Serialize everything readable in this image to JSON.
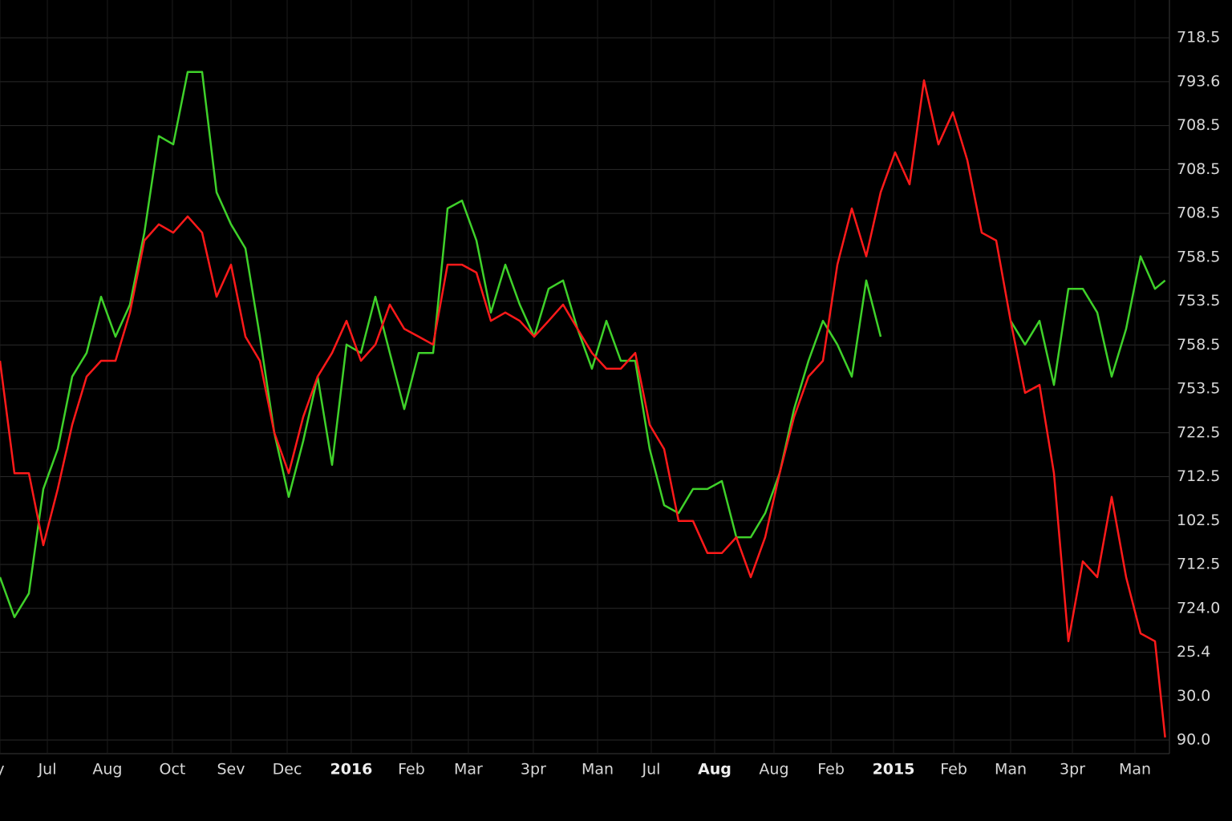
{
  "chart_data": {
    "type": "line",
    "grid": true,
    "xlim": [
      0,
      81
    ],
    "ylim": [
      -0.31,
      16.86
    ],
    "xticks": [
      {
        "value": 0,
        "label": "y"
      },
      {
        "value": 3.28,
        "label": "Jul"
      },
      {
        "value": 7.44,
        "label": "Aug"
      },
      {
        "value": 11.94,
        "label": "Oct"
      },
      {
        "value": 16,
        "label": "Sev"
      },
      {
        "value": 19.89,
        "label": "Dec"
      },
      {
        "value": 24.33,
        "label": "2016"
      },
      {
        "value": 28.5,
        "label": "Feb"
      },
      {
        "value": 32.44,
        "label": "Mar"
      },
      {
        "value": 36.94,
        "label": "3pr"
      },
      {
        "value": 41.39,
        "label": "Man"
      },
      {
        "value": 45.11,
        "label": "Jul"
      },
      {
        "value": 49.5,
        "label": "Aug"
      },
      {
        "value": 53.61,
        "label": "Aug"
      },
      {
        "value": 57.56,
        "label": "Feb"
      },
      {
        "value": 61.89,
        "label": "2015"
      },
      {
        "value": 66.06,
        "label": "Feb"
      },
      {
        "value": 70,
        "label": "Man"
      },
      {
        "value": 74.28,
        "label": "3pr"
      },
      {
        "value": 78.61,
        "label": "Man"
      }
    ],
    "bold_xticks": [
      6,
      12,
      15
    ],
    "yticks": [
      {
        "value": 16,
        "label": "718.5"
      },
      {
        "value": 15,
        "label": "793.6"
      },
      {
        "value": 14,
        "label": "708.5"
      },
      {
        "value": 13,
        "label": "708.5"
      },
      {
        "value": 12,
        "label": "708.5"
      },
      {
        "value": 11,
        "label": "758.5"
      },
      {
        "value": 10,
        "label": "753.5"
      },
      {
        "value": 9,
        "label": "758.5"
      },
      {
        "value": 8,
        "label": "753.5"
      },
      {
        "value": 7,
        "label": "722.5"
      },
      {
        "value": 6,
        "label": "712.5"
      },
      {
        "value": 5,
        "label": "102.5"
      },
      {
        "value": 4,
        "label": "712.5"
      },
      {
        "value": 3,
        "label": "724.0"
      },
      {
        "value": 2,
        "label": "25.4"
      },
      {
        "value": 1,
        "label": "30.0"
      },
      {
        "value": 0,
        "label": "90.0"
      }
    ],
    "x": [
      0,
      1,
      2,
      3,
      4,
      5,
      6,
      7,
      8,
      9,
      10,
      11,
      12,
      13,
      14,
      15,
      16,
      17,
      18,
      19,
      20,
      21,
      22,
      23,
      24,
      25,
      26,
      27,
      28,
      29,
      30,
      31,
      32,
      33,
      34,
      35,
      36,
      37,
      38,
      39,
      40,
      41,
      42,
      43,
      44,
      45,
      46,
      47,
      48,
      49,
      50,
      51,
      52,
      53,
      54,
      55,
      56,
      57,
      58,
      59,
      60,
      61,
      62,
      63,
      64,
      65,
      66,
      67,
      68,
      69,
      70,
      71,
      72,
      73,
      74,
      75,
      76,
      77,
      78,
      79,
      80,
      80.7
    ],
    "series": [
      {
        "color": "#3fd12a",
        "values": [
          3.71,
          2.8,
          3.34,
          5.72,
          6.63,
          8.28,
          8.82,
          10.1,
          9.19,
          9.92,
          11.56,
          13.76,
          13.57,
          15.22,
          15.22,
          12.48,
          11.75,
          11.2,
          9.19,
          7.0,
          5.54,
          6.81,
          8.28,
          6.27,
          9.01,
          8.82,
          10.1,
          8.82,
          7.54,
          8.82,
          8.82,
          12.11,
          12.29,
          11.38,
          9.74,
          10.83,
          9.92,
          9.19,
          10.28,
          10.47,
          9.37,
          8.46,
          9.55,
          8.64,
          8.64,
          6.63,
          5.35,
          5.17,
          5.72,
          5.72,
          5.9,
          4.62,
          4.62,
          5.17,
          6.08,
          7.54,
          8.64,
          9.55,
          9.01,
          8.28,
          10.47,
          9.19,
          null,
          null,
          null,
          null,
          null,
          null,
          null,
          null,
          9.55,
          9.01,
          9.55,
          8.09,
          10.28,
          10.28,
          9.74,
          8.28,
          9.37,
          11.02,
          10.28,
          10.47
        ]
      },
      {
        "color": "#ff1a1a",
        "values": [
          8.64,
          6.08,
          6.08,
          4.44,
          5.72,
          7.18,
          8.28,
          8.64,
          8.64,
          9.74,
          11.38,
          11.75,
          11.56,
          11.93,
          11.56,
          10.1,
          10.83,
          9.19,
          8.64,
          7.0,
          6.08,
          7.36,
          8.28,
          8.82,
          9.55,
          8.64,
          9.01,
          9.92,
          9.37,
          9.19,
          9.01,
          10.83,
          10.83,
          10.65,
          9.55,
          9.74,
          9.55,
          9.19,
          9.55,
          9.92,
          9.37,
          8.82,
          8.46,
          8.46,
          8.82,
          7.18,
          6.63,
          4.99,
          4.99,
          4.26,
          4.26,
          4.62,
          3.71,
          4.62,
          6.08,
          7.36,
          8.28,
          8.64,
          10.83,
          12.11,
          11.02,
          12.48,
          13.39,
          12.66,
          15.03,
          13.57,
          14.3,
          13.21,
          11.56,
          11.38,
          9.55,
          7.91,
          8.09,
          6.08,
          2.25,
          4.07,
          3.71,
          5.54,
          3.71,
          2.43,
          2.25,
          0.06
        ]
      }
    ]
  }
}
